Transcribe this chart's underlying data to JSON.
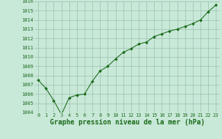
{
  "x": [
    0,
    1,
    2,
    3,
    4,
    5,
    6,
    7,
    8,
    9,
    10,
    11,
    12,
    13,
    14,
    15,
    16,
    17,
    18,
    19,
    20,
    21,
    22,
    23
  ],
  "y": [
    1007.5,
    1006.6,
    1005.3,
    1003.8,
    1005.6,
    1005.9,
    1006.0,
    1007.4,
    1008.5,
    1009.0,
    1009.8,
    1010.5,
    1010.9,
    1011.4,
    1011.6,
    1012.2,
    1012.5,
    1012.8,
    1013.0,
    1013.3,
    1013.6,
    1014.0,
    1014.9,
    1015.6
  ],
  "line_color": "#1a6b1a",
  "marker_color": "#1a6b1a",
  "bg_color": "#c8e8d8",
  "grid_color": "#9abfaa",
  "title": "Graphe pression niveau de la mer (hPa)",
  "title_color": "#1a6b1a",
  "ylim": [
    1004,
    1016
  ],
  "yticks": [
    1004,
    1005,
    1006,
    1007,
    1008,
    1009,
    1010,
    1011,
    1012,
    1013,
    1014,
    1015,
    1016
  ],
  "xticks": [
    0,
    1,
    2,
    3,
    4,
    5,
    6,
    7,
    8,
    9,
    10,
    11,
    12,
    13,
    14,
    15,
    16,
    17,
    18,
    19,
    20,
    21,
    22,
    23
  ],
  "tick_color": "#1a6b1a",
  "tick_fontsize": 5.0,
  "title_fontsize": 7.0
}
